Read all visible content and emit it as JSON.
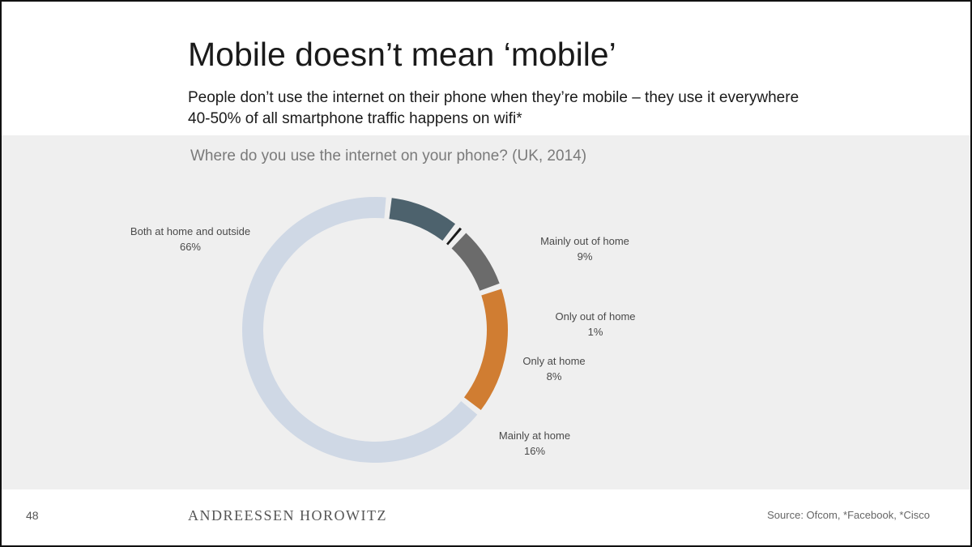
{
  "slide": {
    "title": "Mobile doesn’t mean ‘mobile’",
    "subtitle_line1": "People don’t use the internet on their phone when they’re mobile – they use it everywhere",
    "subtitle_line2": "40-50% of all smartphone traffic happens on wifi*",
    "page_number": "48",
    "brand": "ANDREESSEN HOROWITZ",
    "source": "Source: Ofcom, *Facebook, *Cisco"
  },
  "chart_data": {
    "type": "pie",
    "donut": true,
    "title": "Where do you use the internet on your phone? (UK, 2014)",
    "slices": [
      {
        "label": "Mainly out of home",
        "value": 9,
        "value_label": "9%",
        "color": "#4d626d"
      },
      {
        "label": "Only out of home",
        "value": 1,
        "value_label": "1%",
        "color": "#1a1a1a"
      },
      {
        "label": "Only at home",
        "value": 8,
        "value_label": "8%",
        "color": "#6b6b6b"
      },
      {
        "label": "Mainly at home",
        "value": 16,
        "value_label": "16%",
        "color": "#d07d32"
      },
      {
        "label": "Both at home and outside",
        "value": 66,
        "value_label": "66%",
        "color": "#cfd8e5"
      }
    ]
  }
}
